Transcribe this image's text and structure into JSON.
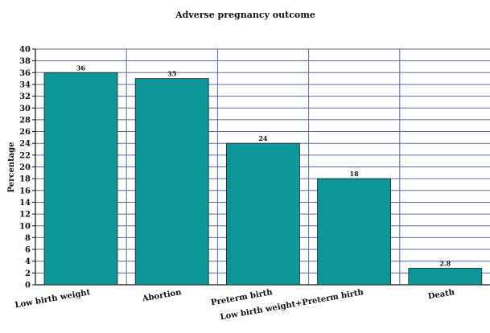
{
  "chart_data": {
    "type": "bar",
    "title": "Adverse pregnancy outcome",
    "xlabel": "",
    "ylabel": "Percentage",
    "categories": [
      "Low birth weight",
      "Abortion",
      "Preterm birth",
      "Low birth weight+Preterm birth",
      "Death"
    ],
    "values": [
      36,
      35,
      24,
      18,
      2.8
    ],
    "data_labels": [
      "36",
      "35",
      "24",
      "18",
      "2.8"
    ],
    "ylim": [
      0,
      40
    ],
    "yticks": [
      0,
      2,
      4,
      6,
      8,
      10,
      12,
      14,
      16,
      18,
      20,
      22,
      24,
      26,
      28,
      30,
      32,
      34,
      36,
      38,
      40
    ],
    "grid": true,
    "legend": "none",
    "bar_color": "#0d9598",
    "grid_color": "#5b6aa6"
  }
}
